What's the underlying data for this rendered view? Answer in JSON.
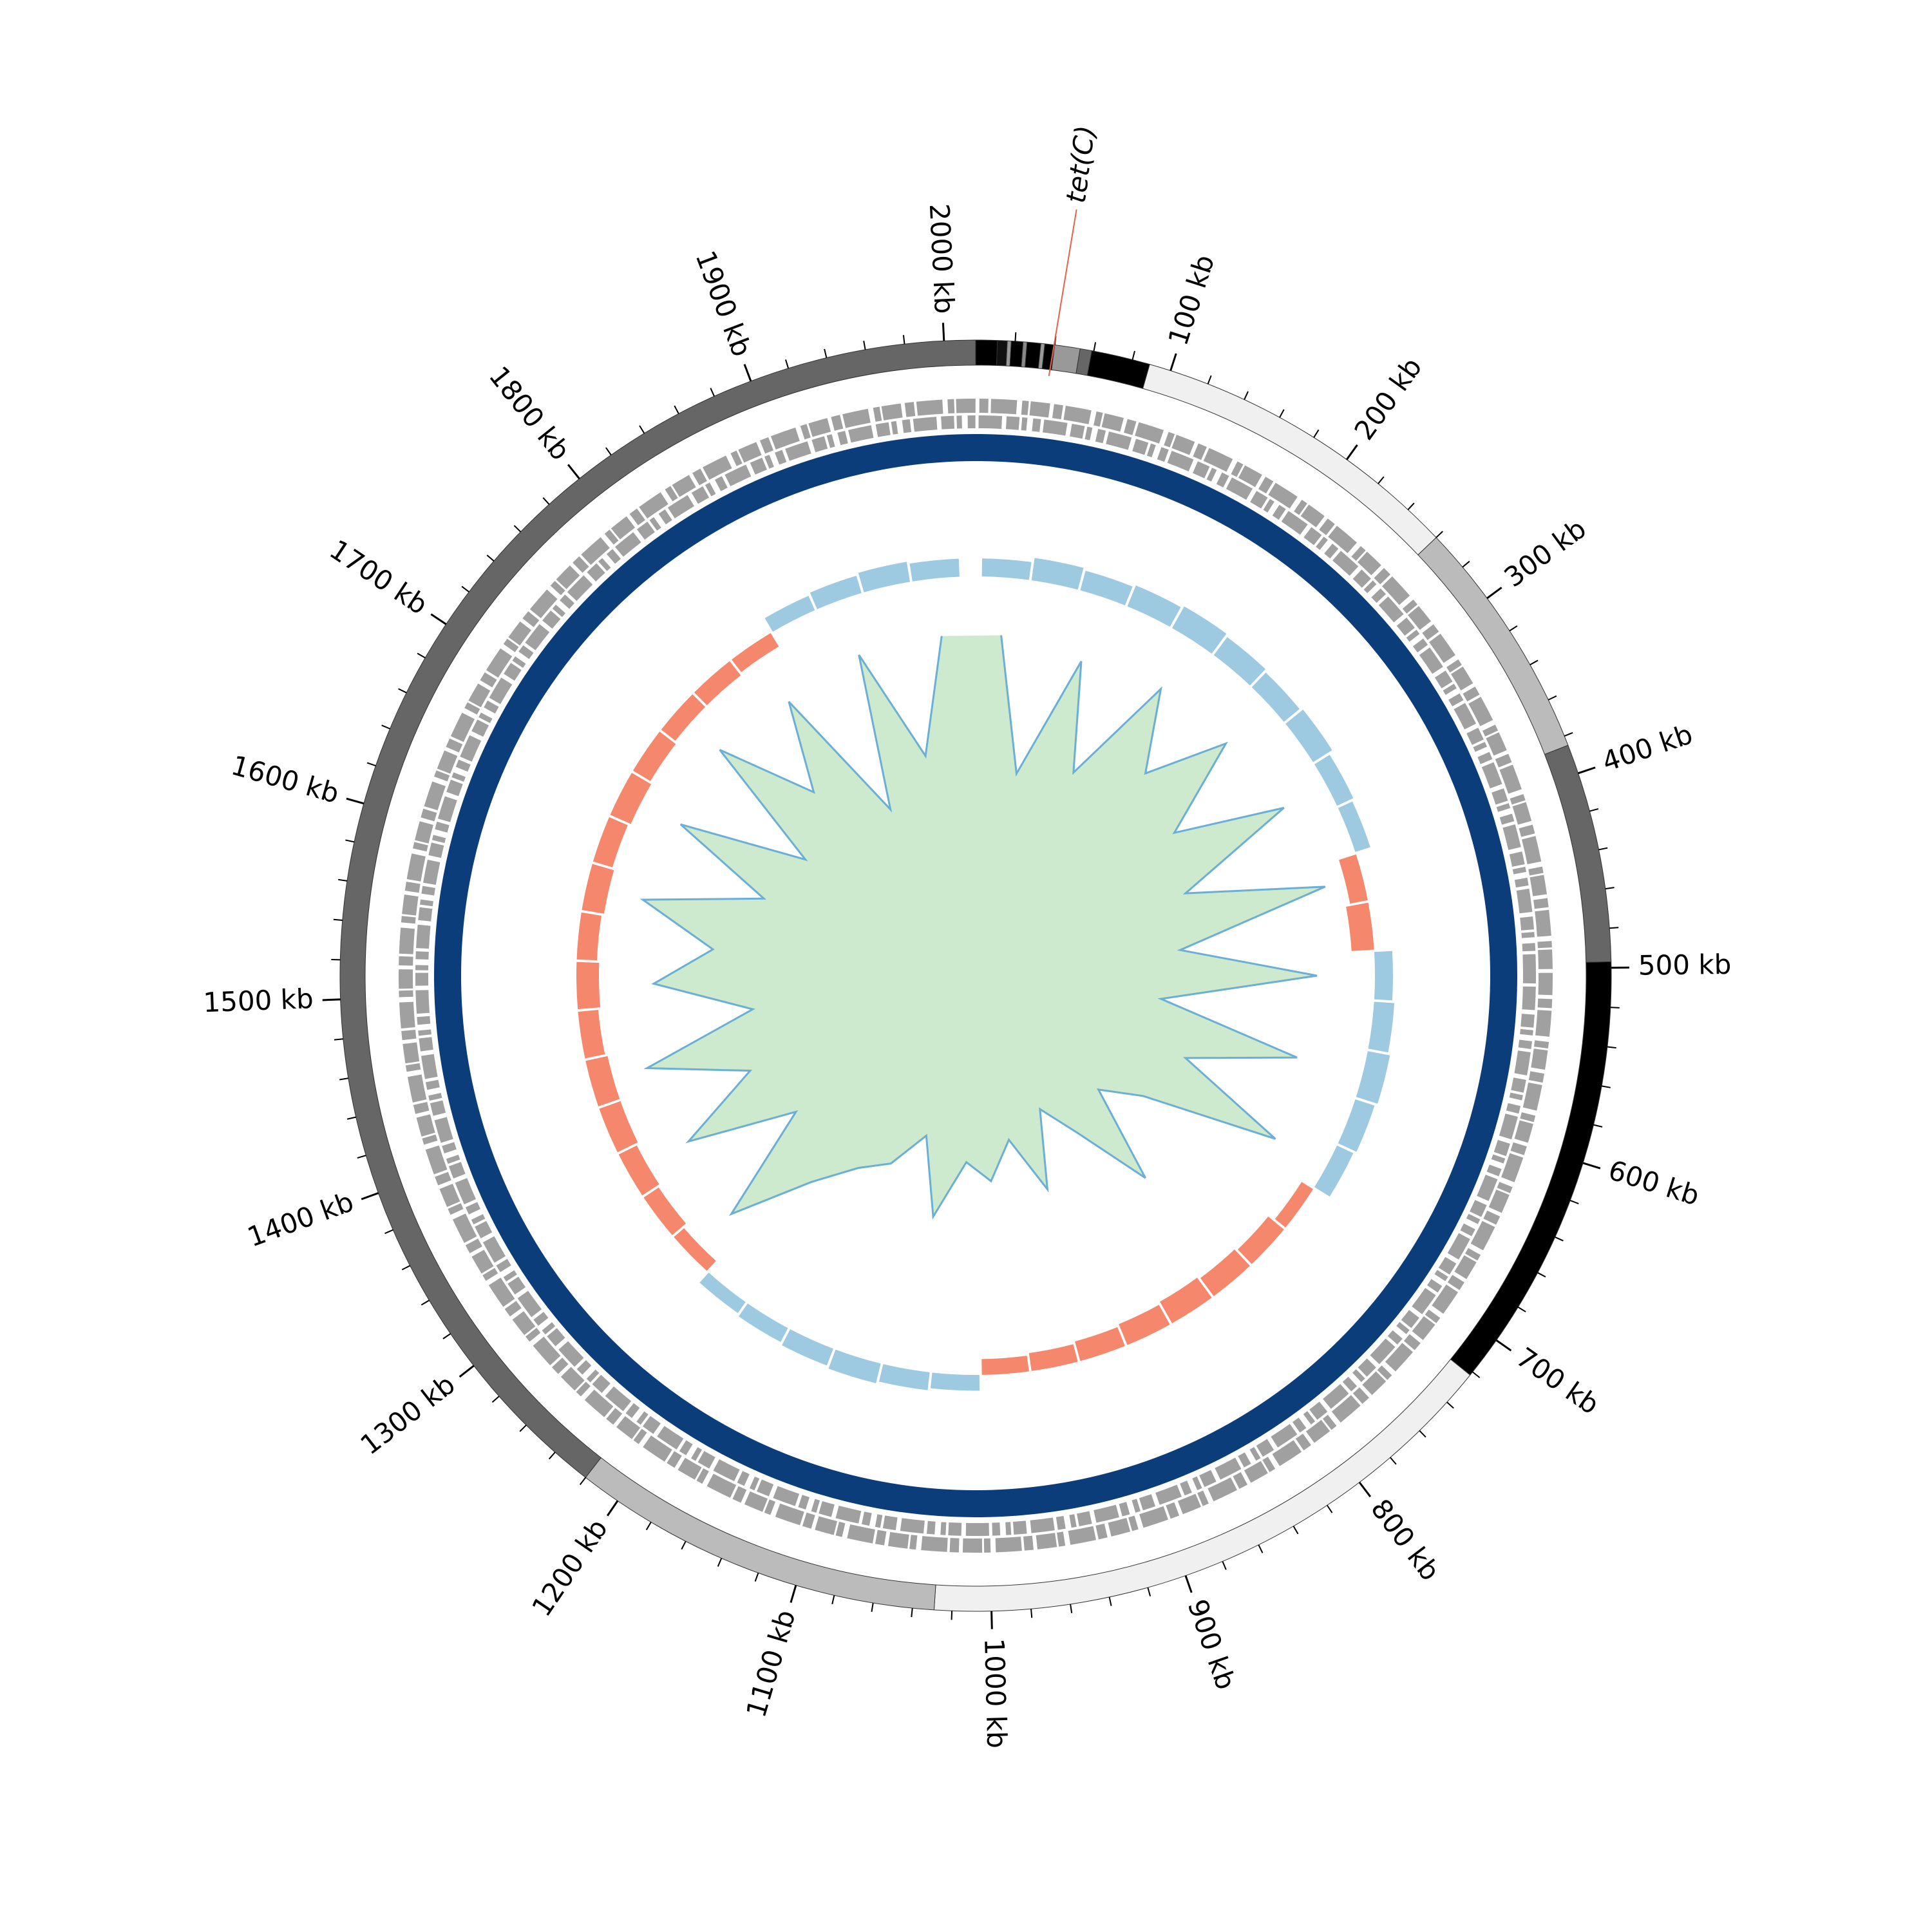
{
  "chart_data": {
    "type": "circular",
    "xlim": [
      0,
      2016
    ],
    "xticks": [
      {
        "value": 100,
        "label": "100 kb"
      },
      {
        "value": 200,
        "label": "200 kb"
      },
      {
        "value": 300,
        "label": "300 kb"
      },
      {
        "value": 400,
        "label": "400 kb"
      },
      {
        "value": 500,
        "label": "500 kb"
      },
      {
        "value": 600,
        "label": "600 kb"
      },
      {
        "value": 700,
        "label": "700 kb"
      },
      {
        "value": 800,
        "label": "800 kb"
      },
      {
        "value": 900,
        "label": "900 kb"
      },
      {
        "value": 1000,
        "label": "1000 kb"
      },
      {
        "value": 1100,
        "label": "1100 kb"
      },
      {
        "value": 1200,
        "label": "1200 kb"
      },
      {
        "value": 1300,
        "label": "1300 kb"
      },
      {
        "value": 1400,
        "label": "1400 kb"
      },
      {
        "value": 1500,
        "label": "1500 kb"
      },
      {
        "value": 1600,
        "label": "1600 kb"
      },
      {
        "value": 1700,
        "label": "1700 kb"
      },
      {
        "value": 1800,
        "label": "1800 kb"
      },
      {
        "value": 1900,
        "label": "1900 kb"
      },
      {
        "value": 2000,
        "label": "2000 kb"
      }
    ],
    "contigs": [
      {
        "start": 0,
        "end": 11,
        "color": "#000000"
      },
      {
        "start": 11,
        "end": 16,
        "color": "#111111"
      },
      {
        "start": 16,
        "end": 18,
        "color": "#999999"
      },
      {
        "start": 18,
        "end": 24,
        "color": "#000000"
      },
      {
        "start": 24,
        "end": 26,
        "color": "#888888"
      },
      {
        "start": 26,
        "end": 33,
        "color": "#000000"
      },
      {
        "start": 33,
        "end": 35,
        "color": "#999999"
      },
      {
        "start": 35,
        "end": 40,
        "color": "#000000"
      },
      {
        "start": 40,
        "end": 53,
        "color": "#999999"
      },
      {
        "start": 53,
        "end": 59,
        "color": "#666666"
      },
      {
        "start": 59,
        "end": 89,
        "color": "#000000"
      },
      {
        "start": 89,
        "end": 260,
        "color": "#f0f0f0"
      },
      {
        "start": 260,
        "end": 385,
        "color": "#bbbbbb"
      },
      {
        "start": 385,
        "end": 497,
        "color": "#666666"
      },
      {
        "start": 497,
        "end": 722,
        "color": "#000000"
      },
      {
        "start": 722,
        "end": 1029,
        "color": "#f0f0f0"
      },
      {
        "start": 1029,
        "end": 1220,
        "color": "#bbbbbb"
      },
      {
        "start": 1220,
        "end": 2016,
        "color": "#666666"
      }
    ],
    "annotations": [
      {
        "label": "tet(C)",
        "position": 39,
        "color": "#3b78bd",
        "line_color": "#e8604a"
      }
    ],
    "gc_skew": {
      "ylim": [
        -1,
        1
      ],
      "positive_color": "#9ecae1",
      "negative_color": "#f4876c",
      "x": [
        24,
        64,
        104,
        144,
        184,
        224,
        264,
        304,
        344,
        384,
        424,
        464,
        504,
        544,
        584,
        624,
        664,
        704,
        744,
        784,
        824,
        864,
        904,
        944,
        984,
        1024,
        1064,
        1104,
        1144,
        1184,
        1224,
        1264,
        1304,
        1344,
        1384,
        1424,
        1464,
        1504,
        1544,
        1584,
        1624,
        1664,
        1704,
        1744,
        1784,
        1824,
        1864,
        1904,
        1944,
        1984
      ],
      "values": [
        0.4,
        0.5,
        0.45,
        0.5,
        0.55,
        0.5,
        0.45,
        0.5,
        0.4,
        0.35,
        -0.4,
        -0.5,
        0.4,
        0.45,
        0.5,
        0.45,
        0.4,
        -0.3,
        -0.45,
        -0.5,
        -0.55,
        -0.5,
        -0.45,
        -0.4,
        -0.35,
        0.35,
        0.4,
        0.45,
        0.4,
        0.35,
        0.3,
        -0.3,
        -0.4,
        -0.45,
        -0.5,
        -0.5,
        -0.45,
        -0.5,
        -0.45,
        -0.5,
        -0.45,
        -0.5,
        -0.45,
        -0.4,
        -0.4,
        -0.35,
        0.35,
        0.4,
        0.45,
        0.4
      ]
    },
    "gc_content": {
      "ylim": [
        -1,
        1
      ],
      "color": "#6fbf73",
      "line_color": "#6baed6",
      "x": [
        24,
        64,
        104,
        144,
        184,
        224,
        264,
        304,
        344,
        384,
        424,
        464,
        504,
        544,
        584,
        624,
        664,
        704,
        744,
        784,
        824,
        864,
        904,
        944,
        984,
        1024,
        1064,
        1104,
        1144,
        1184,
        1224,
        1264,
        1304,
        1344,
        1384,
        1424,
        1464,
        1504,
        1544,
        1584,
        1624,
        1664,
        1704,
        1744,
        1784,
        1824,
        1864,
        1904,
        1944,
        1984
      ],
      "values": [
        0.1,
        -0.6,
        0.05,
        -0.5,
        0.1,
        -0.3,
        0.1,
        -0.4,
        0.15,
        -0.5,
        0.2,
        -0.6,
        0.1,
        -0.7,
        0.05,
        -0.5,
        0.1,
        -0.6,
        -0.8,
        -0.3,
        -0.7,
        -0.9,
        -0.5,
        -0.8,
        -0.6,
        -0.7,
        -0.4,
        -0.8,
        -0.6,
        -0.5,
        -0.3,
        0.1,
        -0.5,
        0.05,
        -0.4,
        0.1,
        -0.5,
        0.0,
        -0.3,
        0.1,
        -0.5,
        0.05,
        -0.6,
        0.1,
        -0.4,
        0.05,
        -0.7,
        0.1,
        -0.5,
        0.1
      ]
    }
  }
}
